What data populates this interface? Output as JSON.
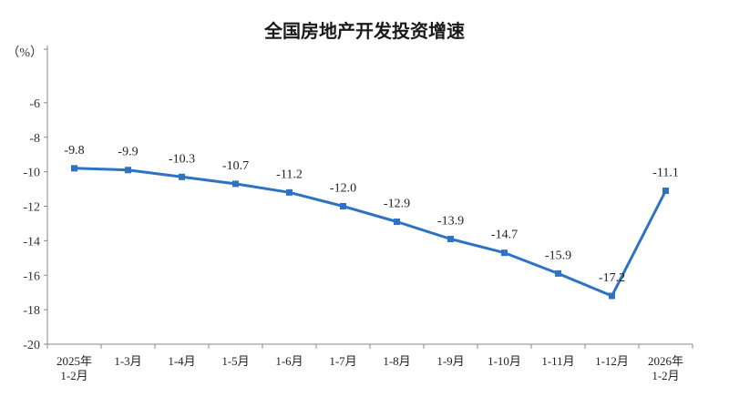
{
  "chart_data": {
    "type": "line",
    "title": "全国房地产开发投资增速",
    "ylabel": "（%）",
    "ylim": [
      -20,
      -4
    ],
    "yticks": [
      -6,
      -8,
      -10,
      -12,
      -14,
      -16,
      -18,
      -20
    ],
    "categories": [
      [
        "2025年",
        "1-2月"
      ],
      [
        "1-3月"
      ],
      [
        "1-4月"
      ],
      [
        "1-5月"
      ],
      [
        "1-6月"
      ],
      [
        "1-7月"
      ],
      [
        "1-8月"
      ],
      [
        "1-9月"
      ],
      [
        "1-10月"
      ],
      [
        "1-11月"
      ],
      [
        "1-12月"
      ],
      [
        "2026年",
        "1-2月"
      ]
    ],
    "values": [
      -9.8,
      -9.9,
      -10.3,
      -10.7,
      -11.2,
      -12.0,
      -12.9,
      -13.9,
      -14.7,
      -15.9,
      -17.2,
      -11.1
    ],
    "data_labels": [
      "-9.8",
      "-9.9",
      "-10.3",
      "-10.7",
      "-11.2",
      "-12.0",
      "-12.9",
      "-13.9",
      "-14.7",
      "-15.9",
      "-17.2",
      "-11.1"
    ],
    "color": "#2e72c4",
    "grid": false,
    "legend": "none"
  }
}
